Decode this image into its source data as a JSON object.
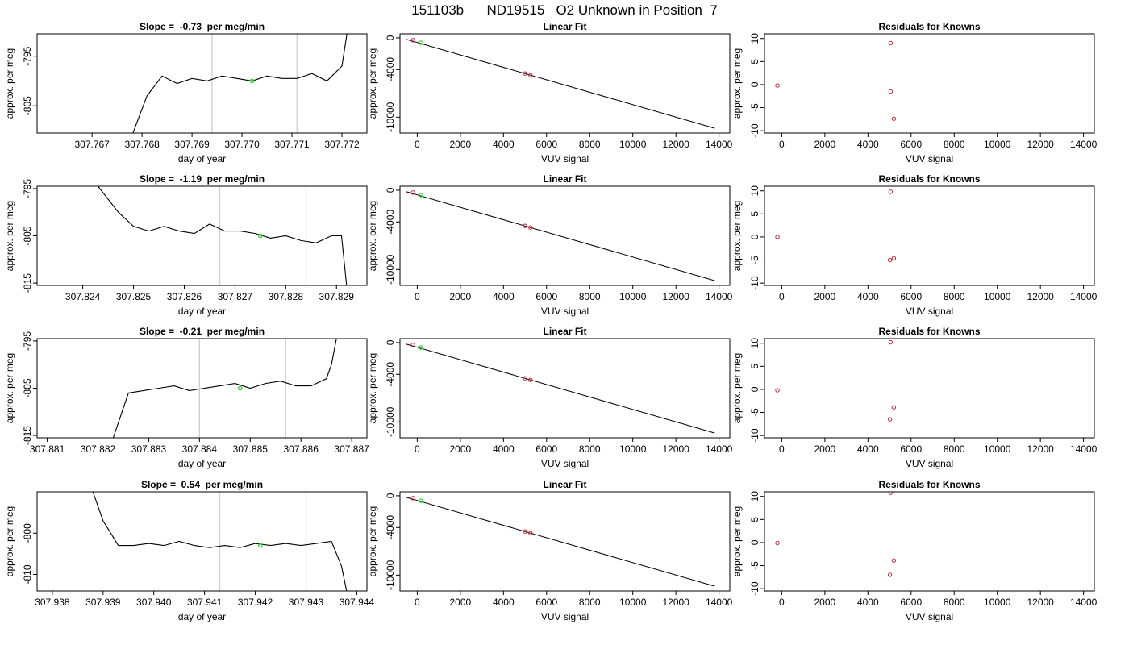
{
  "figure": {
    "title_parts": [
      "151103b",
      "ND19515",
      "O2 Unknown in Position  7"
    ]
  },
  "colors": {
    "frame": "#000000",
    "trace": "#000000",
    "fit_line": "#000000",
    "vlines": "#cfcfcf",
    "known_points": "#cc2233",
    "unknown_points": "#22dd22"
  },
  "chart_data": [
    {
      "type": "line",
      "row": 1,
      "title": "Slope =  -0.73  per meg/min",
      "xlabel": "day of year",
      "ylabel": "approx. per meg",
      "xlim": [
        307.7659,
        307.7725
      ],
      "ylim": [
        -810.5,
        -790.5
      ],
      "xticks": [
        "307.767",
        "307.768",
        "307.769",
        "307.770",
        "307.771",
        "307.772"
      ],
      "yticks": [
        "-795",
        "-805"
      ],
      "vlines": [
        307.7694,
        307.7711
      ],
      "marker": {
        "x": 307.7702,
        "y": -800.0
      },
      "series": [
        {
          "x": [
            307.7678,
            307.7681,
            307.7684,
            307.7687,
            307.769,
            307.7693,
            307.7696,
            307.7699,
            307.7702,
            307.7705,
            307.7708,
            307.7711,
            307.7714,
            307.7717,
            307.772,
            307.7721
          ],
          "y": [
            -811,
            -803,
            -799,
            -800.5,
            -799.5,
            -800,
            -799,
            -799.5,
            -800,
            -799,
            -799.5,
            -799.5,
            -798.5,
            -800,
            -797,
            -790.5
          ]
        }
      ]
    },
    {
      "type": "scatter",
      "row": 1,
      "title": "Linear Fit",
      "xlabel": "VUV signal",
      "ylabel": "approx. per meg",
      "xlim": [
        -800,
        14500
      ],
      "ylim": [
        -12000,
        500
      ],
      "xticks": [
        "0",
        "2000",
        "4000",
        "6000",
        "8000",
        "10000",
        "12000",
        "14000"
      ],
      "yticks": [
        "0",
        "-4000",
        "-10000"
      ],
      "fit_line": {
        "x": [
          -500,
          13800
        ],
        "y": [
          -200,
          -11400
        ]
      },
      "known_points": [
        {
          "x": -200,
          "y": -300
        },
        {
          "x": 5000,
          "y": -4500
        },
        {
          "x": 5250,
          "y": -4700
        }
      ],
      "unknown_points": [
        {
          "x": 170,
          "y": -620
        }
      ]
    },
    {
      "type": "scatter",
      "row": 1,
      "title": "Residuals for Knowns",
      "xlabel": "VUV signal",
      "ylabel": "approx. per meg",
      "xlim": [
        -800,
        14500
      ],
      "ylim": [
        -10.5,
        11
      ],
      "xticks": [
        "0",
        "2000",
        "4000",
        "6000",
        "8000",
        "10000",
        "12000",
        "14000"
      ],
      "yticks": [
        "10",
        "5",
        "0",
        "-5",
        "-10"
      ],
      "points": [
        {
          "x": -200,
          "y": -0.2
        },
        {
          "x": 5050,
          "y": 9.0
        },
        {
          "x": 5050,
          "y": -1.5
        },
        {
          "x": 5200,
          "y": -7.4
        }
      ]
    },
    {
      "type": "line",
      "row": 2,
      "title": "Slope =  -1.19  per meg/min",
      "xlabel": "day of year",
      "ylabel": "approx. per meg",
      "xlim": [
        307.8231,
        307.8296
      ],
      "ylim": [
        -815.5,
        -794.5
      ],
      "xticks": [
        "307.824",
        "307.825",
        "307.826",
        "307.827",
        "307.828",
        "307.829"
      ],
      "yticks": [
        "-795",
        "-805",
        "-815"
      ],
      "vlines": [
        307.8267,
        307.8284
      ],
      "marker": {
        "x": 307.8275,
        "y": -805.0
      },
      "series": [
        {
          "x": [
            307.8243,
            307.8247,
            307.825,
            307.8253,
            307.8256,
            307.8259,
            307.8262,
            307.8265,
            307.8268,
            307.8271,
            307.8274,
            307.8277,
            307.828,
            307.8283,
            307.8286,
            307.8289,
            307.8291,
            307.8292
          ],
          "y": [
            -794.5,
            -800,
            -803,
            -804,
            -803,
            -804,
            -804.5,
            -802.5,
            -804,
            -804,
            -804.5,
            -805.5,
            -805,
            -806,
            -806.5,
            -805,
            -805,
            -815.5
          ]
        }
      ]
    },
    {
      "type": "scatter",
      "row": 2,
      "title": "Linear Fit",
      "xlabel": "VUV signal",
      "ylabel": "approx. per meg",
      "xlim": [
        -800,
        14500
      ],
      "ylim": [
        -12000,
        500
      ],
      "xticks": [
        "0",
        "2000",
        "4000",
        "6000",
        "8000",
        "10000",
        "12000",
        "14000"
      ],
      "yticks": [
        "0",
        "-4000",
        "-10000"
      ],
      "fit_line": {
        "x": [
          -500,
          13800
        ],
        "y": [
          -200,
          -11400
        ]
      },
      "known_points": [
        {
          "x": -200,
          "y": -300
        },
        {
          "x": 5000,
          "y": -4500
        },
        {
          "x": 5250,
          "y": -4700
        }
      ],
      "unknown_points": [
        {
          "x": 170,
          "y": -620
        }
      ]
    },
    {
      "type": "scatter",
      "row": 2,
      "title": "Residuals for Knowns",
      "xlabel": "VUV signal",
      "ylabel": "approx. per meg",
      "xlim": [
        -800,
        14500
      ],
      "ylim": [
        -10.5,
        11
      ],
      "xticks": [
        "0",
        "2000",
        "4000",
        "6000",
        "8000",
        "10000",
        "12000",
        "14000"
      ],
      "yticks": [
        "10",
        "5",
        "0",
        "-5",
        "-10"
      ],
      "points": [
        {
          "x": -200,
          "y": 0.0
        },
        {
          "x": 5050,
          "y": 9.8
        },
        {
          "x": 5020,
          "y": -5.0
        },
        {
          "x": 5200,
          "y": -4.6
        }
      ]
    },
    {
      "type": "line",
      "row": 3,
      "title": "Slope =  -0.21  per meg/min",
      "xlabel": "day of year",
      "ylabel": "approx. per meg",
      "xlim": [
        307.8808,
        307.8873
      ],
      "ylim": [
        -815.5,
        -794.5
      ],
      "xticks": [
        "307.881",
        "307.882",
        "307.883",
        "307.884",
        "307.885",
        "307.886",
        "307.887"
      ],
      "yticks": [
        "-795",
        "-805",
        "-815"
      ],
      "vlines": [
        307.884,
        307.8857
      ],
      "marker": {
        "x": 307.8848,
        "y": -805.0
      },
      "series": [
        {
          "x": [
            307.8823,
            307.8826,
            307.8829,
            307.8832,
            307.8835,
            307.8838,
            307.8841,
            307.8844,
            307.8847,
            307.885,
            307.8853,
            307.8856,
            307.8859,
            307.8862,
            307.8865,
            307.8866,
            307.8867
          ],
          "y": [
            -815.5,
            -806,
            -805.5,
            -805,
            -804.5,
            -805.5,
            -805,
            -804.5,
            -804,
            -805,
            -804,
            -803.5,
            -804.5,
            -804.5,
            -803,
            -800,
            -794.5
          ]
        }
      ]
    },
    {
      "type": "scatter",
      "row": 3,
      "title": "Linear Fit",
      "xlabel": "VUV signal",
      "ylabel": "approx. per meg",
      "xlim": [
        -800,
        14500
      ],
      "ylim": [
        -12000,
        500
      ],
      "xticks": [
        "0",
        "2000",
        "4000",
        "6000",
        "8000",
        "10000",
        "12000",
        "14000"
      ],
      "yticks": [
        "0",
        "-4000",
        "-10000"
      ],
      "fit_line": {
        "x": [
          -500,
          13800
        ],
        "y": [
          -200,
          -11400
        ]
      },
      "known_points": [
        {
          "x": -200,
          "y": -300
        },
        {
          "x": 5000,
          "y": -4500
        },
        {
          "x": 5250,
          "y": -4700
        }
      ],
      "unknown_points": [
        {
          "x": 170,
          "y": -620
        }
      ]
    },
    {
      "type": "scatter",
      "row": 3,
      "title": "Residuals for Knowns",
      "xlabel": "VUV signal",
      "ylabel": "approx. per meg",
      "xlim": [
        -800,
        14500
      ],
      "ylim": [
        -10.5,
        11
      ],
      "xticks": [
        "0",
        "2000",
        "4000",
        "6000",
        "8000",
        "10000",
        "12000",
        "14000"
      ],
      "yticks": [
        "10",
        "5",
        "0",
        "-5",
        "-10"
      ],
      "points": [
        {
          "x": -200,
          "y": -0.2
        },
        {
          "x": 5050,
          "y": 10.2
        },
        {
          "x": 5020,
          "y": -6.5
        },
        {
          "x": 5200,
          "y": -3.9
        }
      ]
    },
    {
      "type": "line",
      "row": 4,
      "title": "Slope =  0.54  per meg/min",
      "xlabel": "day of year",
      "ylabel": "approx. per meg",
      "xlim": [
        307.9377,
        307.9442
      ],
      "ylim": [
        -814,
        -790
      ],
      "xticks": [
        "307.938",
        "307.939",
        "307.940",
        "307.941",
        "307.942",
        "307.943",
        "307.944"
      ],
      "yticks": [
        "-800",
        "-810"
      ],
      "vlines": [
        307.9413,
        307.943
      ],
      "marker": {
        "x": 307.9421,
        "y": -803.0
      },
      "series": [
        {
          "x": [
            307.9388,
            307.939,
            307.9393,
            307.9396,
            307.9399,
            307.9402,
            307.9405,
            307.9408,
            307.9411,
            307.9414,
            307.9417,
            307.942,
            307.9423,
            307.9426,
            307.9429,
            307.9432,
            307.9435,
            307.9437,
            307.9438
          ],
          "y": [
            -790,
            -797,
            -803,
            -803,
            -802.5,
            -803,
            -802,
            -803,
            -803.5,
            -803,
            -803.5,
            -802.5,
            -803,
            -802.5,
            -803,
            -802.5,
            -802,
            -808,
            -814
          ]
        }
      ]
    },
    {
      "type": "scatter",
      "row": 4,
      "title": "Linear Fit",
      "xlabel": "VUV signal",
      "ylabel": "approx. per meg",
      "xlim": [
        -800,
        14500
      ],
      "ylim": [
        -12000,
        500
      ],
      "xticks": [
        "0",
        "2000",
        "4000",
        "6000",
        "8000",
        "10000",
        "12000",
        "14000"
      ],
      "yticks": [
        "0",
        "-4000",
        "-10000"
      ],
      "fit_line": {
        "x": [
          -500,
          13800
        ],
        "y": [
          -200,
          -11400
        ]
      },
      "known_points": [
        {
          "x": -200,
          "y": -300
        },
        {
          "x": 5000,
          "y": -4500
        },
        {
          "x": 5250,
          "y": -4700
        }
      ],
      "unknown_points": [
        {
          "x": 170,
          "y": -620
        }
      ]
    },
    {
      "type": "scatter",
      "row": 4,
      "title": "Residuals for Knowns",
      "xlabel": "VUV signal",
      "ylabel": "approx. per meg",
      "xlim": [
        -800,
        14500
      ],
      "ylim": [
        -10.5,
        11
      ],
      "xticks": [
        "0",
        "2000",
        "4000",
        "6000",
        "8000",
        "10000",
        "12000",
        "14000"
      ],
      "yticks": [
        "10",
        "5",
        "0",
        "-5",
        "-10"
      ],
      "points": [
        {
          "x": -200,
          "y": -0.1
        },
        {
          "x": 5050,
          "y": 10.8
        },
        {
          "x": 5020,
          "y": -7.0
        },
        {
          "x": 5200,
          "y": -3.9
        }
      ]
    }
  ]
}
